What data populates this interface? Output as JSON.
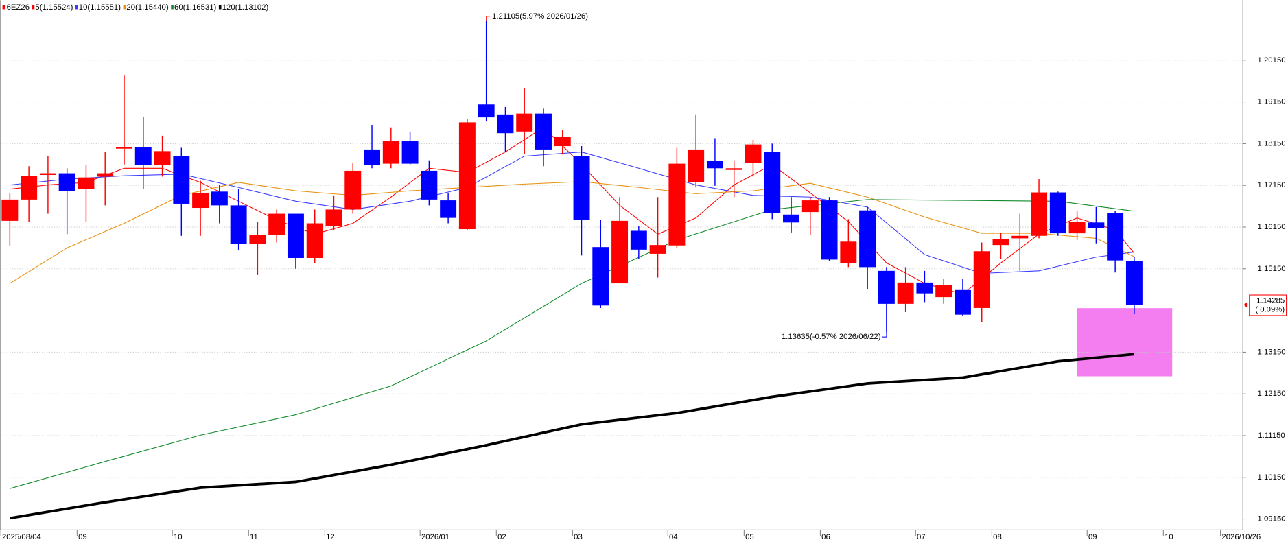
{
  "chart_data": {
    "type": "candlestick",
    "symbol": "6EZ26",
    "categories": [
      "2025/08/04",
      null,
      null,
      null,
      "09",
      null,
      null,
      null,
      null,
      "10",
      null,
      null,
      null,
      "11",
      null,
      null,
      null,
      "12",
      null,
      null,
      null,
      null,
      "2026/01",
      null,
      null,
      null,
      "02",
      null,
      null,
      null,
      "03",
      null,
      null,
      null,
      null,
      "04",
      null,
      null,
      null,
      "05",
      null,
      null,
      null,
      "06",
      null,
      null,
      null,
      null,
      "07",
      null,
      null,
      null,
      "08",
      null,
      null,
      null,
      null,
      "09",
      null,
      null,
      null,
      "10",
      null,
      null,
      "2026/10/26"
    ],
    "open": [
      1.163,
      1.1681,
      1.174,
      1.1744,
      1.1706,
      1.1736,
      1.1803,
      1.1807,
      1.1763,
      1.1785,
      1.1661,
      1.17,
      1.1667,
      1.1574,
      1.1596,
      1.1647,
      1.1541,
      1.1618,
      1.1657,
      1.1801,
      1.1767,
      1.1822,
      1.175,
      1.1679,
      1.161,
      1.1909,
      1.1885,
      1.1844,
      1.1887,
      1.1809,
      1.1785,
      1.1567,
      1.148,
      1.1606,
      1.1551,
      1.1571,
      1.1722,
      1.1773,
      1.1752,
      1.1769,
      1.1795,
      1.1645,
      1.1651,
      1.1679,
      1.1529,
      1.1655,
      1.151,
      1.1431,
      1.1482,
      1.1447,
      1.1464,
      1.1421,
      1.1572,
      1.1588,
      1.1594,
      1.1698,
      1.16,
      1.1626,
      1.1649,
      1.1533,
      null,
      null,
      null,
      null,
      null
    ],
    "high": [
      1.1697,
      1.1761,
      1.1785,
      1.1756,
      1.1765,
      1.1795,
      1.1978,
      1.188,
      1.1834,
      1.1805,
      1.1726,
      1.1716,
      1.1706,
      1.1628,
      1.1657,
      1.1647,
      1.1657,
      1.1691,
      1.1769,
      1.186,
      1.1854,
      1.1844,
      1.1775,
      1.1697,
      1.1874,
      1.21105,
      1.1903,
      1.1948,
      1.1899,
      1.1848,
      1.1809,
      1.1632,
      1.1687,
      1.1618,
      1.1687,
      1.1805,
      1.1885,
      1.1828,
      1.1775,
      1.1824,
      1.1815,
      1.1687,
      1.1687,
      1.1687,
      1.1634,
      1.1663,
      1.1519,
      1.1519,
      1.151,
      1.149,
      1.149,
      1.1578,
      1.1602,
      1.1647,
      1.173,
      1.17,
      1.1653,
      1.1663,
      1.1653,
      1.1543,
      null,
      null,
      null,
      null,
      null
    ],
    "low": [
      1.1569,
      1.1628,
      1.1647,
      1.1598,
      1.1628,
      1.1667,
      1.1765,
      1.1706,
      1.1736,
      1.1594,
      1.1594,
      1.1624,
      1.1559,
      1.15,
      1.1578,
      1.1515,
      1.1529,
      1.1608,
      1.1647,
      1.1756,
      1.1756,
      1.1765,
      1.1667,
      1.1624,
      1.1608,
      1.1868,
      1.1795,
      1.1791,
      1.1761,
      1.1789,
      1.1547,
      1.1421,
      1.148,
      1.1539,
      1.1494,
      1.1565,
      1.171,
      1.1714,
      1.1687,
      1.1736,
      1.1634,
      1.1602,
      1.1596,
      1.1533,
      1.1519,
      1.1466,
      1.13635,
      1.1411,
      1.1435,
      1.1431,
      1.1401,
      1.1388,
      1.1539,
      1.151,
      1.1588,
      1.1594,
      1.1584,
      1.1576,
      1.1506,
      1.1407,
      null,
      null,
      null,
      null,
      null
    ],
    "close": [
      1.1681,
      1.1738,
      1.1744,
      1.1702,
      1.1734,
      1.1744,
      1.1807,
      1.1763,
      1.1797,
      1.1671,
      1.1697,
      1.1667,
      1.1574,
      1.1596,
      1.1647,
      1.1541,
      1.1624,
      1.1657,
      1.175,
      1.1763,
      1.1822,
      1.1767,
      1.1681,
      1.1637,
      1.1866,
      1.1878,
      1.184,
      1.1887,
      1.1801,
      1.1832,
      1.1632,
      1.1427,
      1.163,
      1.1561,
      1.1572,
      1.1767,
      1.1801,
      1.1756,
      1.1756,
      1.1813,
      1.1649,
      1.1626,
      1.1679,
      1.1537,
      1.158,
      1.1519,
      1.1431,
      1.1482,
      1.1456,
      1.1476,
      1.1405,
      1.1557,
      1.1586,
      1.1594,
      1.1698,
      1.16,
      1.1628,
      1.1612,
      1.1535,
      1.14285,
      null,
      null,
      null,
      null,
      null
    ],
    "up_color": "#ff0000",
    "down_color": "#0000ff",
    "series": [
      {
        "name": "5(1.15524)",
        "color": "#ff0000",
        "line_width": 0.9,
        "x": [
          0,
          2,
          4,
          6,
          8,
          10,
          12,
          14,
          16,
          18,
          20,
          22,
          24,
          26,
          28,
          30,
          32,
          34,
          36,
          38,
          40,
          42,
          44,
          46,
          48,
          50,
          52,
          54,
          56,
          58,
          59
        ],
        "values": [
          1.1706,
          1.1716,
          1.1722,
          1.1756,
          1.1756,
          1.1722,
          1.1677,
          1.1632,
          1.1598,
          1.1624,
          1.1687,
          1.1756,
          1.1746,
          1.1795,
          1.1854,
          1.1765,
          1.1667,
          1.1598,
          1.1637,
          1.1716,
          1.1765,
          1.1697,
          1.1628,
          1.1529,
          1.148,
          1.1454,
          1.1529,
          1.1598,
          1.1637,
          1.1608,
          1.15524
        ]
      },
      {
        "name": "10(1.15551)",
        "color": "#3b3bff",
        "line_width": 0.9,
        "x": [
          0,
          3,
          6,
          9,
          12,
          15,
          18,
          21,
          24,
          27,
          30,
          33,
          36,
          39,
          42,
          45,
          48,
          51,
          54,
          57,
          59
        ],
        "values": [
          1.1716,
          1.173,
          1.1738,
          1.1742,
          1.171,
          1.1677,
          1.1657,
          1.1677,
          1.171,
          1.1785,
          1.1795,
          1.1756,
          1.1716,
          1.1691,
          1.1687,
          1.1663,
          1.1549,
          1.1504,
          1.151,
          1.1543,
          1.15551
        ]
      },
      {
        "name": "20(1.15440)",
        "color": "#e8900c",
        "line_width": 0.9,
        "x": [
          0,
          3,
          6,
          9,
          12,
          15,
          18,
          21,
          24,
          27,
          30,
          33,
          36,
          39,
          42,
          45,
          48,
          51,
          54,
          57,
          59
        ],
        "values": [
          1.148,
          1.1565,
          1.1624,
          1.1691,
          1.1722,
          1.1702,
          1.1691,
          1.1702,
          1.171,
          1.1718,
          1.1724,
          1.171,
          1.1695,
          1.1702,
          1.172,
          1.1687,
          1.1639,
          1.16,
          1.16,
          1.1588,
          1.1544
        ]
      },
      {
        "name": "60(1.16531)",
        "color": "#108a2a",
        "line_width": 0.9,
        "x": [
          0,
          5,
          10,
          15,
          20,
          25,
          30,
          35,
          40,
          45,
          50,
          55,
          59
        ],
        "values": [
          1.0988,
          1.1053,
          1.1116,
          1.1165,
          1.1234,
          1.1342,
          1.148,
          1.1584,
          1.1657,
          1.1681,
          1.1679,
          1.1677,
          1.16531
        ]
      },
      {
        "name": "120(1.13102)",
        "color": "#000000",
        "line_width": 3.2,
        "x": [
          0,
          5,
          10,
          15,
          20,
          25,
          30,
          35,
          40,
          45,
          50,
          55,
          59
        ],
        "values": [
          1.0917,
          1.0955,
          1.099,
          1.1004,
          1.1045,
          1.1092,
          1.1142,
          1.1169,
          1.1208,
          1.124,
          1.1254,
          1.1293,
          1.13102
        ]
      }
    ],
    "ylim": [
      1.0889,
      1.2159
    ],
    "yticks": [
      {
        "value": 1.0915,
        "label": "1.09150"
      },
      {
        "value": 1.1015,
        "label": "1.10150"
      },
      {
        "value": 1.1115,
        "label": "1.11150"
      },
      {
        "value": 1.1215,
        "label": "1.12150"
      },
      {
        "value": 1.1315,
        "label": "1.13150"
      },
      {
        "value": 1.1515,
        "label": "1.15150"
      },
      {
        "value": 1.1615,
        "label": "1.16150"
      },
      {
        "value": 1.1715,
        "label": "1.17150"
      },
      {
        "value": 1.1815,
        "label": "1.18150"
      },
      {
        "value": 1.1915,
        "label": "1.19150"
      },
      {
        "value": 1.2015,
        "label": "1.20150"
      }
    ],
    "grid": true,
    "high_label": "1.21105(5.97% 2026/01/26)",
    "low_label": "1.13635(-0.57% 2026/06/22)",
    "change_label": "( 0.09%)"
  }
}
